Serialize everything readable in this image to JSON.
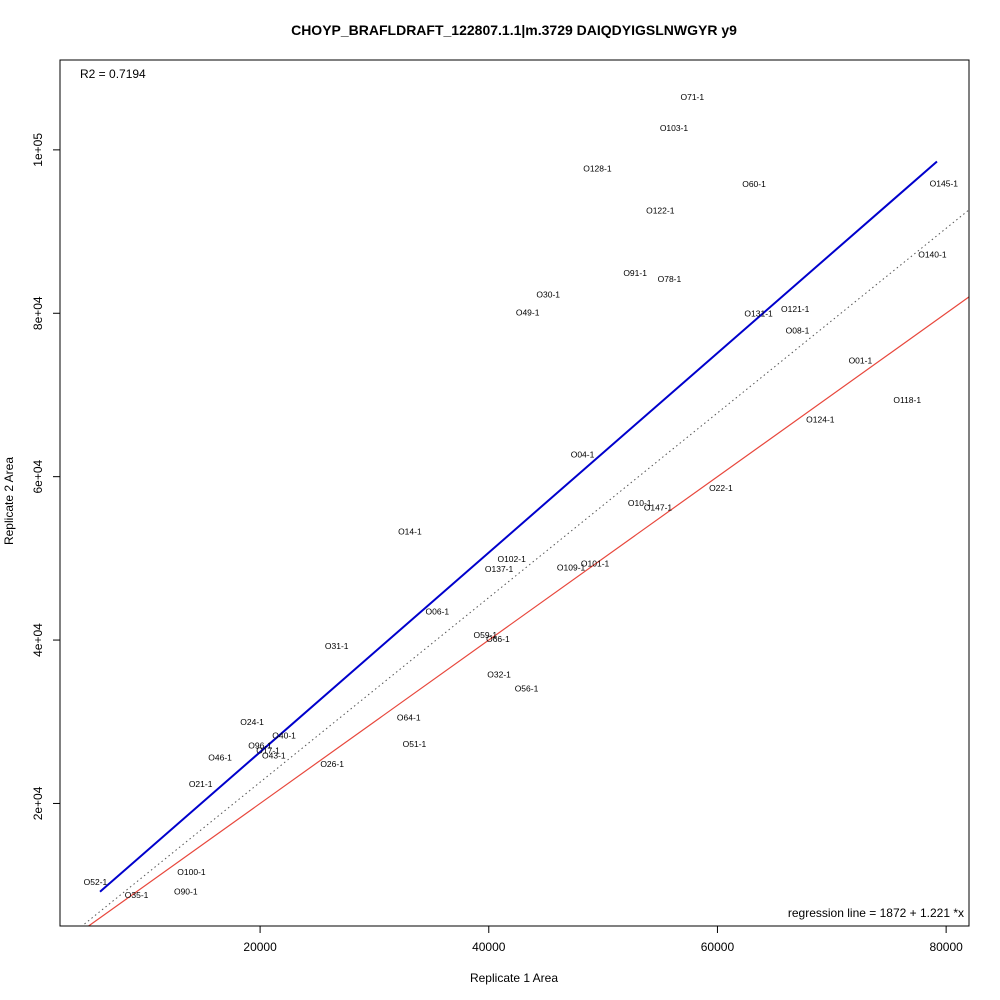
{
  "chart_data": {
    "type": "scatter",
    "title": "CHOYP_BRAFLDRAFT_122807.1.1|m.3729 DAIQDYIGSLNWGYR y9",
    "xlabel": "Replicate 1 Area",
    "ylabel": "Replicate 2 Area",
    "xlim": [
      2500,
      82000
    ],
    "ylim": [
      5000,
      111000
    ],
    "x_ticks": [
      20000,
      40000,
      60000,
      80000
    ],
    "x_tick_labels": [
      "20000",
      "40000",
      "60000",
      "80000"
    ],
    "y_ticks": [
      20000,
      40000,
      60000,
      80000,
      100000
    ],
    "y_tick_labels": [
      "2e+04",
      "4e+04",
      "6e+04",
      "8e+04",
      "1e+05"
    ],
    "r2_text": "R2 = 0.7194",
    "regression_text": "regression line = 1872 + 1.221 *x",
    "regression": {
      "intercept": 1872,
      "slope": 1.221,
      "x_range": [
        6000,
        79200
      ],
      "color": "#0000cc"
    },
    "identity_line": {
      "slope": 1,
      "intercept": 0,
      "color": "#e8473c"
    },
    "dotted_line": {
      "slope": 1.13,
      "intercept": 0,
      "color": "#555555"
    },
    "points": [
      {
        "label": "O71-1",
        "x": 57800,
        "y": 106500
      },
      {
        "label": "O103-1",
        "x": 56200,
        "y": 102700
      },
      {
        "label": "O128-1",
        "x": 49500,
        "y": 97700
      },
      {
        "label": "O60-1",
        "x": 63200,
        "y": 95800
      },
      {
        "label": "O145-1",
        "x": 79800,
        "y": 95900
      },
      {
        "label": "O122-1",
        "x": 55000,
        "y": 92600
      },
      {
        "label": "O140-1",
        "x": 78800,
        "y": 87200
      },
      {
        "label": "O91-1",
        "x": 52800,
        "y": 84900
      },
      {
        "label": "O78-1",
        "x": 55800,
        "y": 84200
      },
      {
        "label": "O30-1",
        "x": 45200,
        "y": 82300
      },
      {
        "label": "O49-1",
        "x": 43400,
        "y": 80100
      },
      {
        "label": "O131-1",
        "x": 63600,
        "y": 80000
      },
      {
        "label": "O121-1",
        "x": 66800,
        "y": 80500
      },
      {
        "label": "O08-1",
        "x": 67000,
        "y": 77900
      },
      {
        "label": "O01-1",
        "x": 72500,
        "y": 74200
      },
      {
        "label": "O118-1",
        "x": 76600,
        "y": 69400
      },
      {
        "label": "O124-1",
        "x": 69000,
        "y": 67000
      },
      {
        "label": "O04-1",
        "x": 48200,
        "y": 62700
      },
      {
        "label": "O22-1",
        "x": 60300,
        "y": 58600
      },
      {
        "label": "O10-1",
        "x": 53200,
        "y": 56800
      },
      {
        "label": "O147-1",
        "x": 54800,
        "y": 56200
      },
      {
        "label": "O14-1",
        "x": 33100,
        "y": 53300
      },
      {
        "label": "O102-1",
        "x": 42000,
        "y": 49900
      },
      {
        "label": "O137-1",
        "x": 40900,
        "y": 48700
      },
      {
        "label": "O109-1",
        "x": 47200,
        "y": 48900
      },
      {
        "label": "O101-1",
        "x": 49300,
        "y": 49400
      },
      {
        "label": "O06-1",
        "x": 35500,
        "y": 43500
      },
      {
        "label": "O31-1",
        "x": 26700,
        "y": 39300
      },
      {
        "label": "O59-1",
        "x": 39700,
        "y": 40600
      },
      {
        "label": "O66-1",
        "x": 40800,
        "y": 40100
      },
      {
        "label": "O32-1",
        "x": 40900,
        "y": 35800
      },
      {
        "label": "O56-1",
        "x": 43300,
        "y": 34100
      },
      {
        "label": "O64-1",
        "x": 33000,
        "y": 30500
      },
      {
        "label": "O51-1",
        "x": 33500,
        "y": 27300
      },
      {
        "label": "O24-1",
        "x": 19300,
        "y": 30000
      },
      {
        "label": "O40-1",
        "x": 22100,
        "y": 28300
      },
      {
        "label": "O96-1",
        "x": 20000,
        "y": 27100
      },
      {
        "label": "O17-1",
        "x": 20700,
        "y": 26500
      },
      {
        "label": "O43-1",
        "x": 21200,
        "y": 25900
      },
      {
        "label": "O46-1",
        "x": 16500,
        "y": 25600
      },
      {
        "label": "O26-1",
        "x": 26300,
        "y": 24800
      },
      {
        "label": "O21-1",
        "x": 14800,
        "y": 22400
      },
      {
        "label": "O52-1",
        "x": 5600,
        "y": 10400
      },
      {
        "label": "O100-1",
        "x": 14000,
        "y": 11600
      },
      {
        "label": "O35-1",
        "x": 9200,
        "y": 8800
      },
      {
        "label": "O90-1",
        "x": 13500,
        "y": 9200
      }
    ]
  }
}
